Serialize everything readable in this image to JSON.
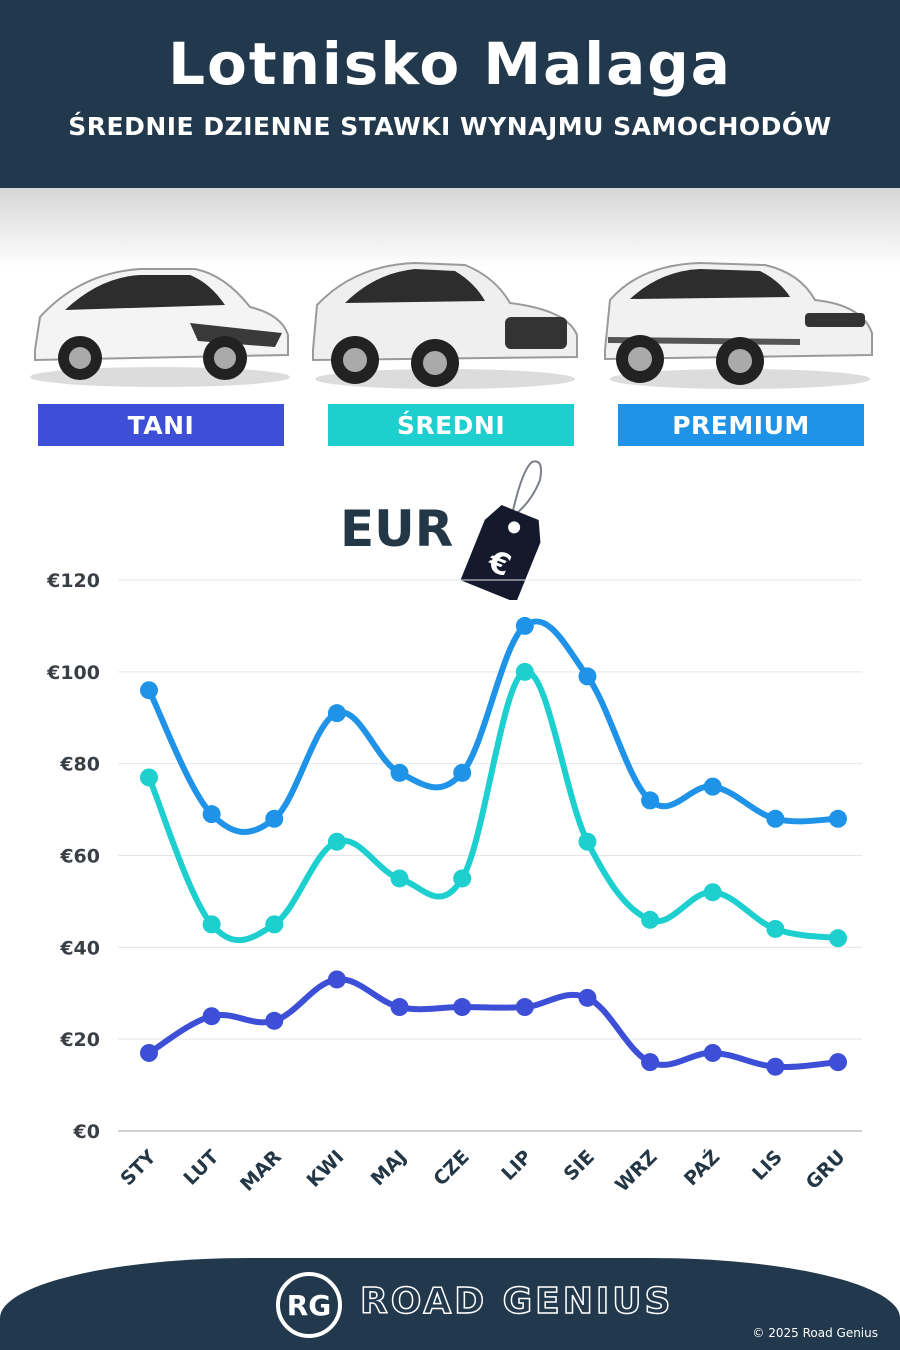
{
  "header": {
    "title": "Lotnisko Malaga",
    "subtitle": "ŚREDNIE DZIENNE STAWKI WYNAJMU SAMOCHODÓW"
  },
  "categories": [
    {
      "label": "TANI",
      "color": "#3d4fd6",
      "icon": "hatchback-car-icon"
    },
    {
      "label": "ŚREDNI",
      "color": "#1dcfcf",
      "icon": "suv-car-icon"
    },
    {
      "label": "PREMIUM",
      "color": "#1e93e8",
      "icon": "premium-suv-icon"
    }
  ],
  "currency_label": "EUR",
  "price_tag_symbol": "€",
  "chart_data": {
    "type": "line",
    "categories": [
      "STY",
      "LUT",
      "MAR",
      "KWI",
      "MAJ",
      "CZE",
      "LIP",
      "SIE",
      "WRZ",
      "PAŹ",
      "LIS",
      "GRU"
    ],
    "ylim": [
      0,
      120
    ],
    "yticks": [
      0,
      20,
      40,
      60,
      80,
      100,
      120
    ],
    "ytick_labels": [
      "€0",
      "€20",
      "€40",
      "€60",
      "€80",
      "€100",
      "€120"
    ],
    "grid": true,
    "legend": "top (category badges above chart)",
    "series": [
      {
        "name": "PREMIUM",
        "color": "#1e93e8",
        "values": [
          96,
          69,
          68,
          91,
          78,
          78,
          110,
          99,
          72,
          75,
          68,
          68
        ]
      },
      {
        "name": "ŚREDNI",
        "color": "#1dcfcf",
        "values": [
          77,
          45,
          45,
          63,
          55,
          55,
          100,
          63,
          46,
          52,
          44,
          42
        ]
      },
      {
        "name": "TANI",
        "color": "#3d4fd6",
        "values": [
          17,
          25,
          24,
          33,
          27,
          27,
          27,
          29,
          15,
          17,
          14,
          15
        ]
      }
    ]
  },
  "footer": {
    "logo_text": "RG",
    "brand": "ROAD GENIUS",
    "copyright": "© 2025 Road Genius"
  }
}
